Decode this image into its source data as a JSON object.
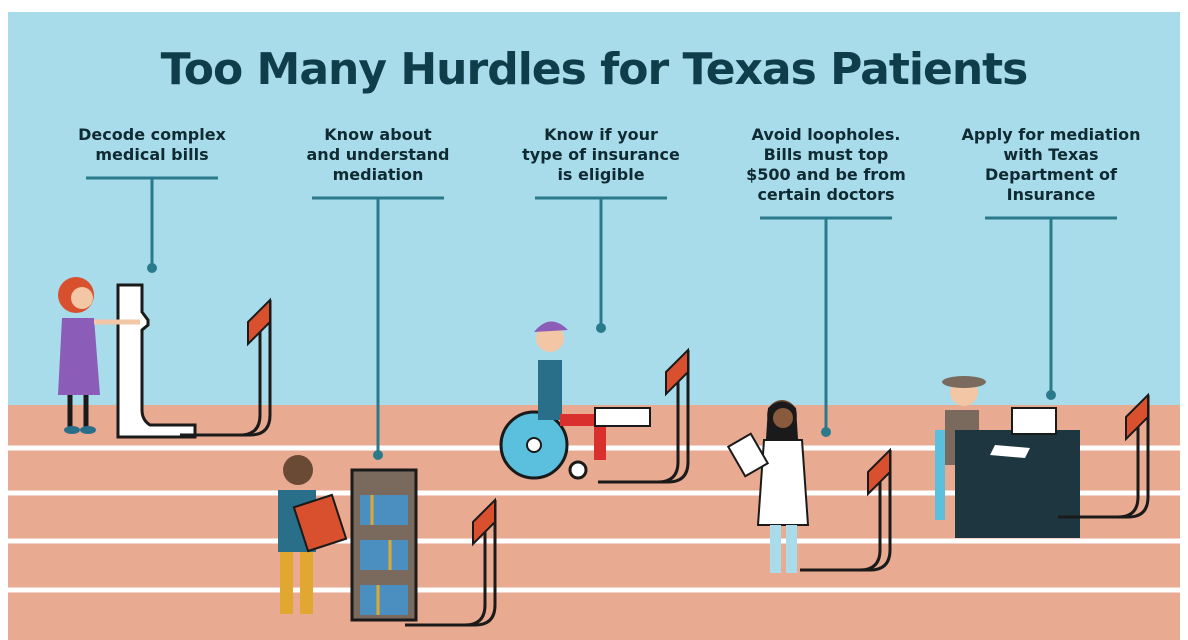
{
  "title": "Too Many Hurdles for Texas Patients",
  "hurdles": [
    {
      "lines": [
        "Decode complex",
        "medical bills"
      ]
    },
    {
      "lines": [
        "Know about",
        "and understand",
        "mediation"
      ]
    },
    {
      "lines": [
        "Know if your",
        "type of insurance",
        "is eligible"
      ]
    },
    {
      "lines": [
        "Avoid loopholes.",
        "Bills must top",
        "$500 and be from",
        "certain doctors"
      ]
    },
    {
      "lines": [
        "Apply for mediation",
        "with Texas",
        "Department of",
        "Insurance"
      ]
    }
  ]
}
